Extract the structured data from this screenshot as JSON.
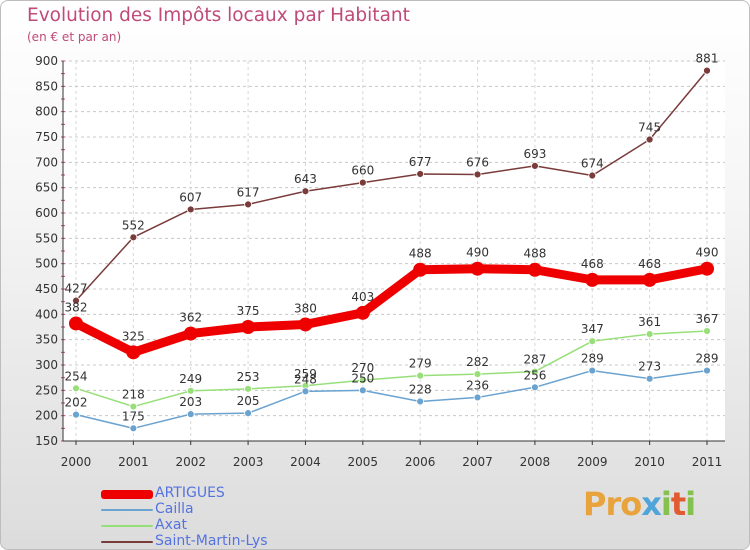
{
  "title": "Evolution des Impôts locaux par Habitant",
  "subtitle": "(en € et par an)",
  "logo": "Proxiti",
  "chart_data": {
    "type": "line",
    "title": "Evolution des Impôts locaux par Habitant",
    "subtitle": "(en € et par an)",
    "xlabel": "",
    "ylabel": "",
    "ylim": [
      150,
      900
    ],
    "yticks": [
      150,
      200,
      250,
      300,
      350,
      400,
      450,
      500,
      550,
      600,
      650,
      700,
      750,
      800,
      850,
      900
    ],
    "x": [
      "2000",
      "2001",
      "2002",
      "2003",
      "2004",
      "2005",
      "2006",
      "2007",
      "2008",
      "2009",
      "2010",
      "2011"
    ],
    "series": [
      {
        "name": "ARTIGUES",
        "color": "#ee0000",
        "values": [
          382,
          325,
          362,
          375,
          380,
          403,
          488,
          490,
          488,
          468,
          468,
          490
        ]
      },
      {
        "name": "Cailla",
        "color": "#6aa2d0",
        "values": [
          202,
          175,
          203,
          205,
          248,
          250,
          228,
          236,
          256,
          289,
          273,
          289
        ]
      },
      {
        "name": "Axat",
        "color": "#98df7a",
        "values": [
          254,
          218,
          249,
          253,
          259,
          270,
          279,
          282,
          287,
          347,
          361,
          367
        ]
      },
      {
        "name": "Saint-Martin-Lys",
        "color": "#7a3b3b",
        "values": [
          427,
          552,
          607,
          617,
          643,
          660,
          677,
          676,
          693,
          674,
          745,
          881
        ]
      }
    ],
    "legend_position": "bottom-left",
    "grid": "horizontal-dashed"
  }
}
